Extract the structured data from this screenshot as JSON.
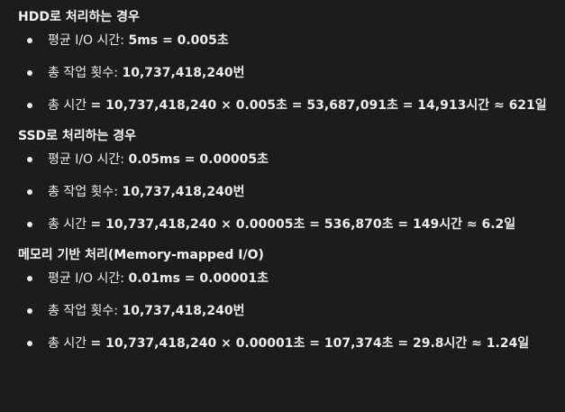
{
  "sections": [
    {
      "title": "HDD로 처리하는 경우",
      "items": [
        {
          "label": "평균 I/O 시간: ",
          "value": "5ms = 0.005초"
        },
        {
          "label": "총 작업 횟수: ",
          "value": "10,737,418,240번"
        },
        {
          "label": "총 시간 ",
          "value": "= 10,737,418,240 × 0.005초 = 53,687,091초 = 14,913시간 ≈ 621일"
        }
      ]
    },
    {
      "title": "SSD로 처리하는 경우",
      "items": [
        {
          "label": "평균 I/O 시간: ",
          "value": "0.05ms = 0.00005초"
        },
        {
          "label": "총 작업 횟수: ",
          "value": "10,737,418,240번"
        },
        {
          "label": "총 시간 ",
          "value": "= 10,737,418,240 × 0.00005초 = 536,870초 = 149시간 ≈ 6.2일"
        }
      ]
    },
    {
      "title": "메모리 기반 처리(Memory-mapped I/O)",
      "items": [
        {
          "label": "평균 I/O 시간: ",
          "value": "0.01ms = 0.00001초"
        },
        {
          "label": "총 작업 횟수: ",
          "value": "10,737,418,240번"
        },
        {
          "label": "총 시간 ",
          "value": "= 10,737,418,240 × 0.00001초 = 107,374초 = 29.8시간 ≈ 1.24일"
        }
      ]
    }
  ]
}
